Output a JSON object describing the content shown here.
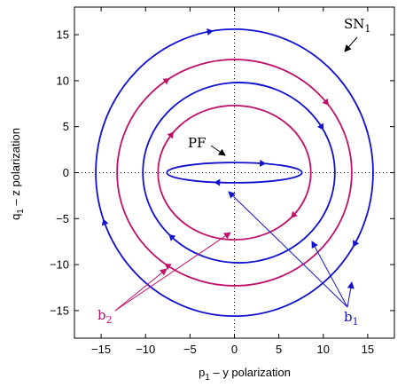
{
  "chart_data": {
    "type": "line",
    "xlabel": "p",
    "xlabel_sub": "1",
    "xlabel_rest": " – y polarization",
    "ylabel": "q",
    "ylabel_sub": "1",
    "ylabel_rest": " – z polarization",
    "xlim": [
      -18,
      18
    ],
    "ylim": [
      -18,
      18
    ],
    "xticks": [
      -15,
      -10,
      -5,
      0,
      5,
      10,
      15
    ],
    "yticks": [
      -15,
      -10,
      -5,
      0,
      5,
      10,
      15
    ],
    "xtick_labels": [
      "−15",
      "−10",
      "−5",
      "0",
      "5",
      "10",
      "15"
    ],
    "ytick_labels": [
      "−15",
      "−10",
      "−5",
      "0",
      "5",
      "10",
      "15"
    ],
    "zero_lines": "dotted",
    "colors": {
      "b1": "#1010d0",
      "b2": "#c0106a",
      "text": "#000000"
    },
    "series": [
      {
        "group": "b1",
        "cx": 0,
        "cy": 0,
        "rx": 15.6,
        "ry": 15.6
      },
      {
        "group": "b1",
        "cx": 0.5,
        "cy": 0,
        "rx": 10.8,
        "ry": 9.8
      },
      {
        "group": "b1",
        "cx": 0,
        "cy": 0,
        "rx": 7.6,
        "ry": 1.1
      },
      {
        "group": "b2",
        "cx": 0,
        "cy": 0,
        "rx": 13.2,
        "ry": 12.3
      },
      {
        "group": "b2",
        "cx": 0,
        "cy": 0,
        "rx": 8.6,
        "ry": 7.3
      }
    ],
    "annotations": {
      "sn1": {
        "main": "SN",
        "sub": "1"
      },
      "pf": {
        "main": "PF"
      },
      "b1": {
        "main": "b",
        "sub": "1"
      },
      "b2": {
        "main": "b",
        "sub": "2"
      }
    }
  }
}
